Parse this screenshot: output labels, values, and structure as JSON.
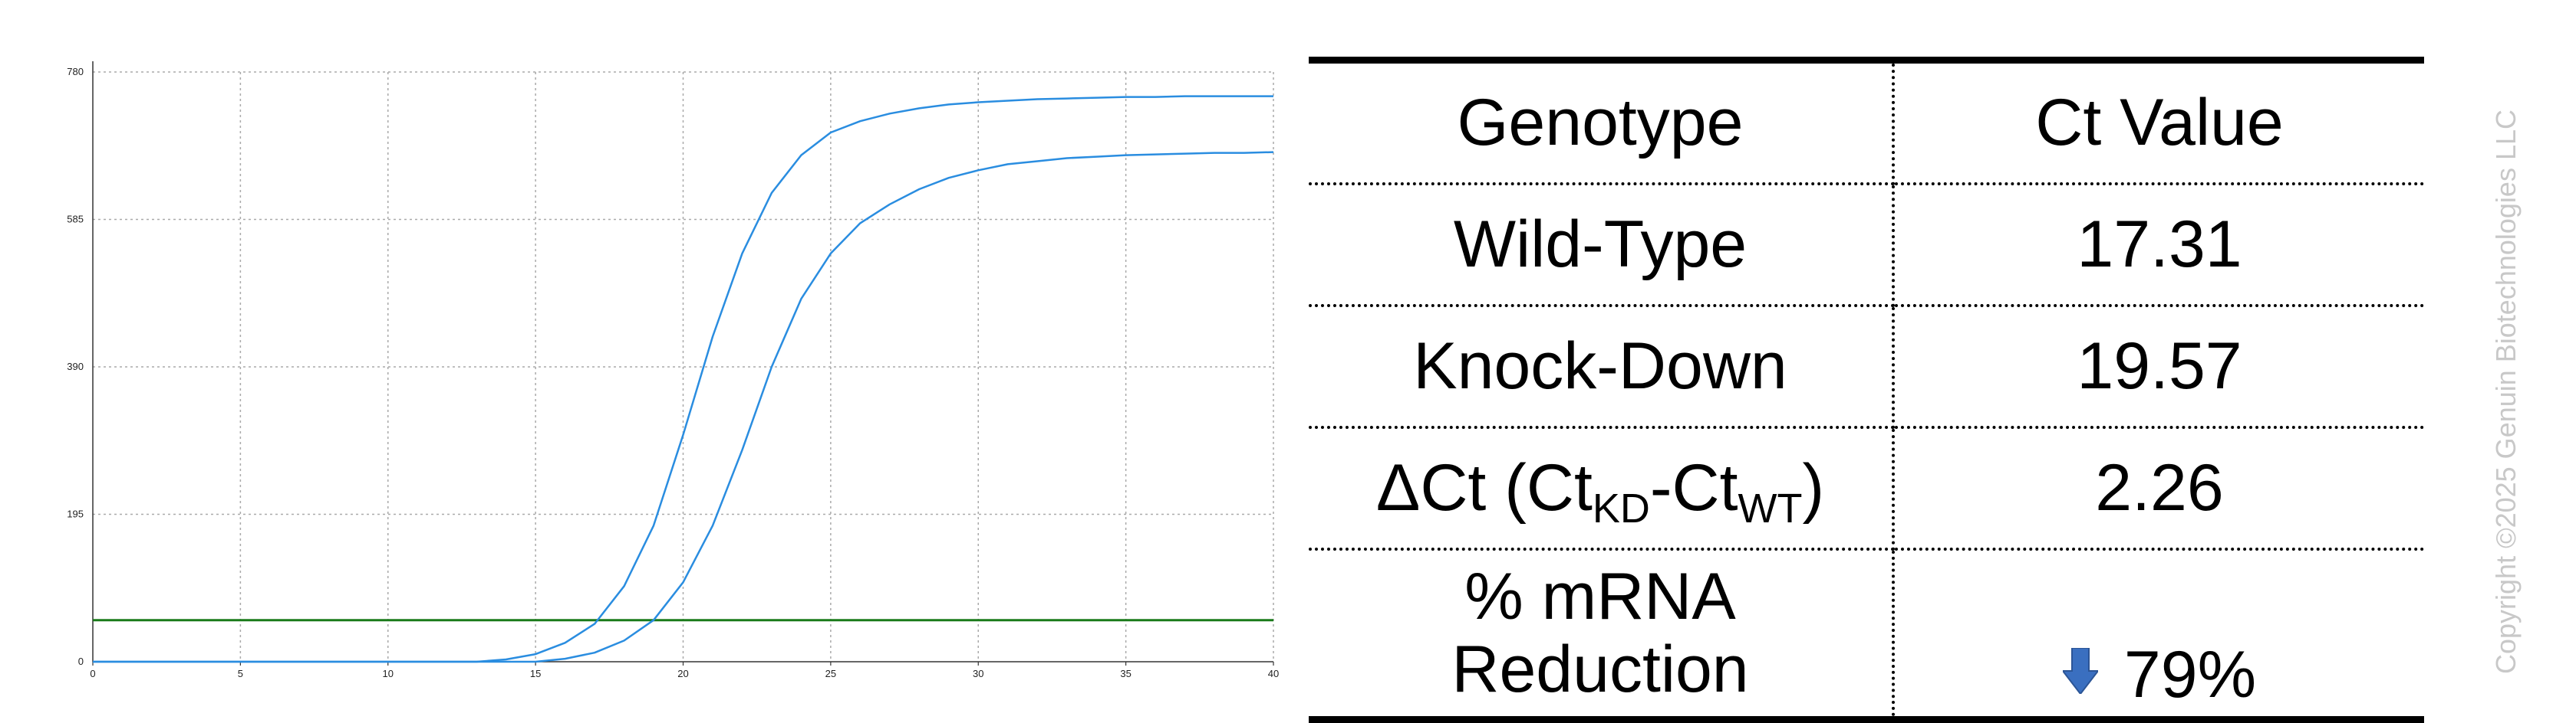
{
  "chart_data": {
    "type": "line",
    "xlim": [
      0,
      40
    ],
    "ylim": [
      0,
      780
    ],
    "x_ticks": [
      0,
      5,
      10,
      15,
      20,
      25,
      30,
      35,
      40
    ],
    "y_ticks": [
      0,
      195,
      390,
      585,
      780
    ],
    "grid": true,
    "threshold": 55,
    "colors": {
      "curves": "#2a8de0",
      "threshold": "#1a7a1a",
      "grid": "#aaaaaa"
    },
    "series": [
      {
        "x": [
          0,
          13,
          14,
          15,
          16,
          17,
          18,
          19,
          20,
          21,
          22,
          23,
          24,
          25,
          26,
          27,
          28,
          29,
          30,
          31,
          32,
          33,
          34,
          35,
          36,
          37,
          38,
          39,
          40
        ],
        "values": [
          0,
          0,
          3,
          10,
          25,
          50,
          100,
          180,
          300,
          430,
          540,
          620,
          670,
          700,
          715,
          725,
          732,
          737,
          740,
          742,
          744,
          745,
          746,
          747,
          747,
          748,
          748,
          748,
          748
        ]
      },
      {
        "x": [
          0,
          15,
          16,
          17,
          18,
          19,
          20,
          21,
          22,
          23,
          24,
          25,
          26,
          27,
          28,
          29,
          30,
          31,
          32,
          33,
          34,
          35,
          36,
          37,
          38,
          39,
          40
        ],
        "values": [
          0,
          0,
          4,
          12,
          28,
          55,
          105,
          180,
          280,
          390,
          480,
          540,
          580,
          605,
          625,
          640,
          650,
          658,
          662,
          666,
          668,
          670,
          671,
          672,
          673,
          673,
          674
        ]
      }
    ]
  },
  "table": {
    "header": {
      "col1": "Genotype",
      "col2": "Ct Value"
    },
    "rows": [
      {
        "label": "Wild-Type",
        "value": "17.31"
      },
      {
        "label": "Knock-Down",
        "value": "19.57"
      }
    ],
    "delta": {
      "prefix": "ΔCt (Ct",
      "sub1": "KD",
      "dash": "-Ct",
      "sub2": "WT",
      "suffix": ")",
      "value": "2.26"
    },
    "reduction": {
      "label_line1": "% mRNA",
      "label_line2": "Reduction",
      "value": "79%",
      "arrow_icon": "down-arrow-icon",
      "arrow_color": "#3a6fc0"
    }
  },
  "copyright": "Copyright ©2025 Genuin Biotechnologies LLC"
}
